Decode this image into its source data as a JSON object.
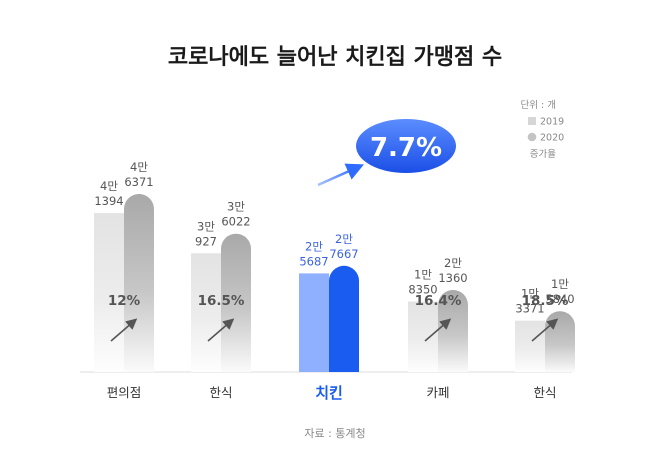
{
  "title": "코로나에도 늘어난 치킨집 가맹점 수",
  "legend": {
    "unit": "단위 : 개",
    "item_2019": "2019",
    "item_2020": "2020",
    "growth": "증가율"
  },
  "highlight_badge": "7.7%",
  "source": "자료 : 통계청",
  "colors": {
    "bar_2019": "#e3e3e3",
    "bar_2020": "#a9a9a9",
    "highlight_2019": "#8fb0ff",
    "highlight_2020": "#1b5cf0",
    "highlight_text": "#1b5cf0"
  },
  "chart_data": {
    "type": "bar",
    "categories": [
      "편의점",
      "한식",
      "치킨",
      "카페",
      "한식"
    ],
    "series": [
      {
        "name": "2019",
        "values": [
          41394,
          30927,
          25687,
          18350,
          13371
        ]
      },
      {
        "name": "2020",
        "values": [
          46371,
          36022,
          27667,
          21360,
          15840
        ]
      }
    ],
    "value_labels_2019": [
      [
        "4만",
        "1394"
      ],
      [
        "3만",
        "927"
      ],
      [
        "2만",
        "5687"
      ],
      [
        "1만",
        "8350"
      ],
      [
        "1만",
        "3371"
      ]
    ],
    "value_labels_2020": [
      [
        "4만",
        "6371"
      ],
      [
        "3만",
        "6022"
      ],
      [
        "2만",
        "7667"
      ],
      [
        "2만",
        "1360"
      ],
      [
        "1만",
        "5840"
      ]
    ],
    "growth_labels": [
      "12%",
      "16.5%",
      "",
      "16.4%",
      "18.5%"
    ],
    "highlight_index": 2,
    "unit": "개",
    "ylim": [
      0,
      50000
    ]
  }
}
